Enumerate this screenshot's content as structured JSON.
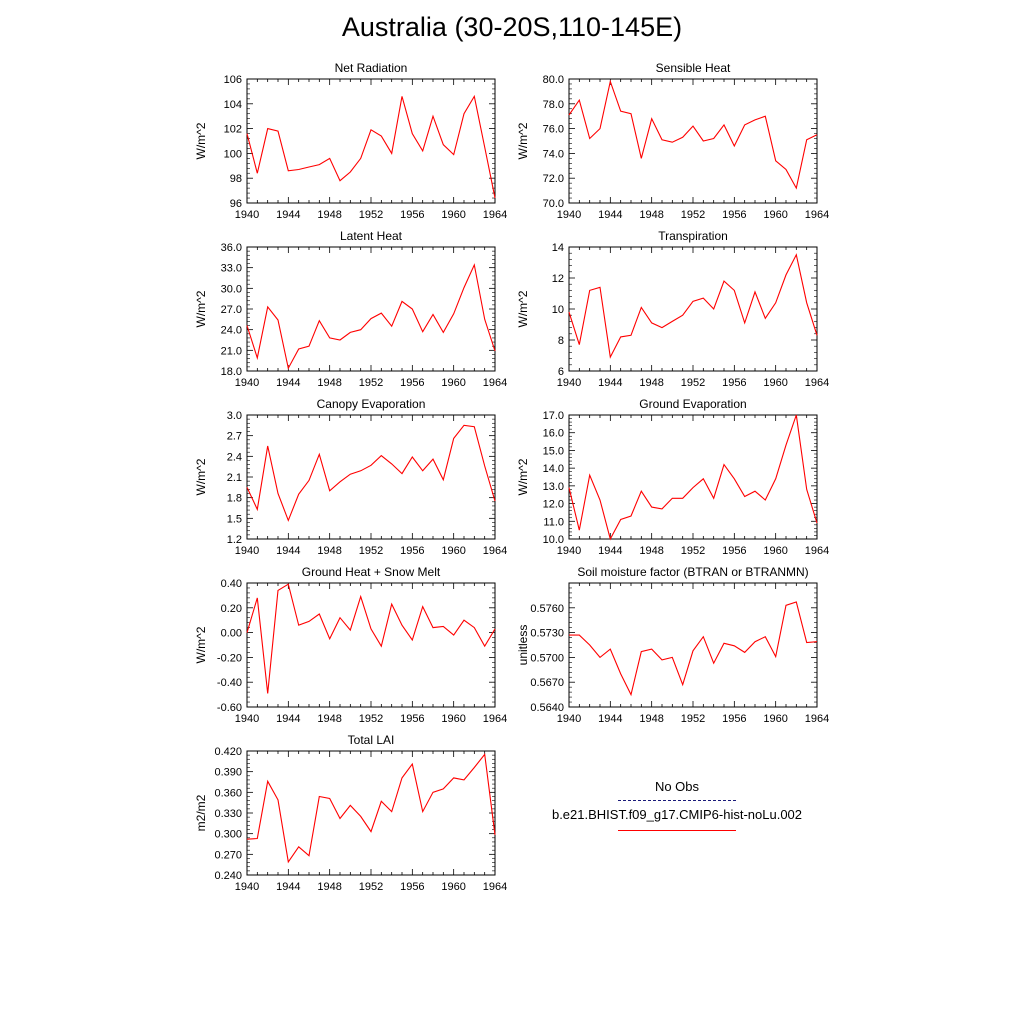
{
  "title": "Australia (30-20S,110-145E)",
  "legend": {
    "obs_label": "No Obs",
    "obs_color": "#1a1a7a",
    "run_label": "b.e21.BHIST.f09_g17.CMIP6-hist-noLu.002",
    "run_color": "#ff0000"
  },
  "chart_data": [
    {
      "type": "line",
      "title": "Net Radiation",
      "ylabel": "W/m^2",
      "ylim": [
        96,
        106
      ],
      "yticks": [
        "96",
        "98",
        "100",
        "102",
        "104",
        "106"
      ],
      "xticks": [
        "1940",
        "1944",
        "1948",
        "1952",
        "1956",
        "1960",
        "1964"
      ],
      "x": [
        1940,
        1941,
        1942,
        1943,
        1944,
        1945,
        1946,
        1947,
        1948,
        1949,
        1950,
        1951,
        1952,
        1953,
        1954,
        1955,
        1956,
        1957,
        1958,
        1959,
        1960,
        1961,
        1962,
        1963,
        1964
      ],
      "series": [
        {
          "color": "#ff0000",
          "values": [
            101.6,
            98.4,
            102.0,
            101.8,
            98.6,
            98.7,
            98.9,
            99.1,
            99.6,
            97.8,
            98.5,
            99.6,
            101.9,
            101.4,
            100.0,
            104.6,
            101.6,
            100.2,
            103.0,
            100.7,
            99.9,
            103.2,
            104.6,
            100.5,
            96.4
          ]
        }
      ]
    },
    {
      "type": "line",
      "title": "Sensible Heat",
      "ylabel": "W/m^2",
      "ylim": [
        70,
        80
      ],
      "yticks": [
        "70.0",
        "72.0",
        "74.0",
        "76.0",
        "78.0",
        "80.0"
      ],
      "xticks": [
        "1940",
        "1944",
        "1948",
        "1952",
        "1956",
        "1960",
        "1964"
      ],
      "x": [
        1940,
        1941,
        1942,
        1943,
        1944,
        1945,
        1946,
        1947,
        1948,
        1949,
        1950,
        1951,
        1952,
        1953,
        1954,
        1955,
        1956,
        1957,
        1958,
        1959,
        1960,
        1961,
        1962,
        1963,
        1964
      ],
      "series": [
        {
          "color": "#ff0000",
          "values": [
            77.1,
            78.3,
            75.2,
            76.0,
            79.8,
            77.4,
            77.2,
            73.6,
            76.8,
            75.1,
            74.9,
            75.3,
            76.2,
            75.0,
            75.2,
            76.3,
            74.6,
            76.3,
            76.7,
            77.0,
            73.4,
            72.7,
            71.2,
            75.1,
            75.5
          ]
        }
      ]
    },
    {
      "type": "line",
      "title": "Latent Heat",
      "ylabel": "W/m^2",
      "ylim": [
        18,
        36
      ],
      "yticks": [
        "18.0",
        "21.0",
        "24.0",
        "27.0",
        "30.0",
        "33.0",
        "36.0"
      ],
      "xticks": [
        "1940",
        "1944",
        "1948",
        "1952",
        "1956",
        "1960",
        "1964"
      ],
      "x": [
        1940,
        1941,
        1942,
        1943,
        1944,
        1945,
        1946,
        1947,
        1948,
        1949,
        1950,
        1951,
        1952,
        1953,
        1954,
        1955,
        1956,
        1957,
        1958,
        1959,
        1960,
        1961,
        1962,
        1963,
        1964
      ],
      "series": [
        {
          "color": "#ff0000",
          "values": [
            24.6,
            19.9,
            27.3,
            25.4,
            18.4,
            21.2,
            21.6,
            25.3,
            22.8,
            22.5,
            23.6,
            24.0,
            25.6,
            26.4,
            24.5,
            28.1,
            27.0,
            23.7,
            26.2,
            23.6,
            26.3,
            30.1,
            33.4,
            25.5,
            20.9
          ]
        }
      ]
    },
    {
      "type": "line",
      "title": "Transpiration",
      "ylabel": "W/m^2",
      "ylim": [
        6,
        14
      ],
      "yticks": [
        "6",
        "8",
        "10",
        "12",
        "14"
      ],
      "xticks": [
        "1940",
        "1944",
        "1948",
        "1952",
        "1956",
        "1960",
        "1964"
      ],
      "x": [
        1940,
        1941,
        1942,
        1943,
        1944,
        1945,
        1946,
        1947,
        1948,
        1949,
        1950,
        1951,
        1952,
        1953,
        1954,
        1955,
        1956,
        1957,
        1958,
        1959,
        1960,
        1961,
        1962,
        1963,
        1964
      ],
      "series": [
        {
          "color": "#ff0000",
          "values": [
            9.8,
            7.7,
            11.2,
            11.4,
            6.9,
            8.2,
            8.3,
            10.1,
            9.1,
            8.8,
            9.2,
            9.6,
            10.5,
            10.7,
            10.0,
            11.8,
            11.2,
            9.1,
            11.1,
            9.4,
            10.4,
            12.2,
            13.5,
            10.4,
            8.3
          ]
        }
      ]
    },
    {
      "type": "line",
      "title": "Canopy Evaporation",
      "ylabel": "W/m^2",
      "ylim": [
        1.2,
        3.0
      ],
      "yticks": [
        "1.2",
        "1.5",
        "1.8",
        "2.1",
        "2.4",
        "2.7",
        "3.0"
      ],
      "xticks": [
        "1940",
        "1944",
        "1948",
        "1952",
        "1956",
        "1960",
        "1964"
      ],
      "x": [
        1940,
        1941,
        1942,
        1943,
        1944,
        1945,
        1946,
        1947,
        1948,
        1949,
        1950,
        1951,
        1952,
        1953,
        1954,
        1955,
        1956,
        1957,
        1958,
        1959,
        1960,
        1961,
        1962,
        1963,
        1964
      ],
      "series": [
        {
          "color": "#ff0000",
          "values": [
            1.95,
            1.63,
            2.55,
            1.86,
            1.47,
            1.85,
            2.05,
            2.43,
            1.9,
            2.03,
            2.14,
            2.19,
            2.27,
            2.41,
            2.29,
            2.15,
            2.39,
            2.19,
            2.36,
            2.06,
            2.66,
            2.85,
            2.83,
            2.26,
            1.75
          ]
        }
      ]
    },
    {
      "type": "line",
      "title": "Ground Evaporation",
      "ylabel": "W/m^2",
      "ylim": [
        10,
        17
      ],
      "yticks": [
        "10.0",
        "11.0",
        "12.0",
        "13.0",
        "14.0",
        "15.0",
        "16.0",
        "17.0"
      ],
      "xticks": [
        "1940",
        "1944",
        "1948",
        "1952",
        "1956",
        "1960",
        "1964"
      ],
      "x": [
        1940,
        1941,
        1942,
        1943,
        1944,
        1945,
        1946,
        1947,
        1948,
        1949,
        1950,
        1951,
        1952,
        1953,
        1954,
        1955,
        1956,
        1957,
        1958,
        1959,
        1960,
        1961,
        1962,
        1963,
        1964
      ],
      "series": [
        {
          "color": "#ff0000",
          "values": [
            12.9,
            10.5,
            13.6,
            12.2,
            10.0,
            11.1,
            11.3,
            12.7,
            11.8,
            11.7,
            12.3,
            12.3,
            12.9,
            13.4,
            12.3,
            14.2,
            13.4,
            12.4,
            12.7,
            12.2,
            13.4,
            15.3,
            17.0,
            12.8,
            10.9
          ]
        }
      ]
    },
    {
      "type": "line",
      "title": "Ground Heat + Snow Melt",
      "ylabel": "W/m^2",
      "ylim": [
        -0.6,
        0.4
      ],
      "yticks": [
        "-0.60",
        "-0.40",
        "-0.20",
        "0.00",
        "0.20",
        "0.40"
      ],
      "xticks": [
        "1940",
        "1944",
        "1948",
        "1952",
        "1956",
        "1960",
        "1964"
      ],
      "x": [
        1940,
        1941,
        1942,
        1943,
        1944,
        1945,
        1946,
        1947,
        1948,
        1949,
        1950,
        1951,
        1952,
        1953,
        1954,
        1955,
        1956,
        1957,
        1958,
        1959,
        1960,
        1961,
        1962,
        1963,
        1964
      ],
      "series": [
        {
          "color": "#ff0000",
          "values": [
            0.0,
            0.28,
            -0.49,
            0.34,
            0.39,
            0.06,
            0.09,
            0.15,
            -0.05,
            0.12,
            0.02,
            0.29,
            0.03,
            -0.11,
            0.23,
            0.06,
            -0.06,
            0.21,
            0.04,
            0.05,
            -0.02,
            0.1,
            0.04,
            -0.11,
            0.03
          ]
        }
      ]
    },
    {
      "type": "line",
      "title": "Soil moisture factor (BTRAN or BTRANMN)",
      "ylabel": "unitless",
      "ylim": [
        0.564,
        0.579
      ],
      "yticks": [
        "0.5640",
        "0.5670",
        "0.5700",
        "0.5730",
        "0.5760"
      ],
      "ytick_values": [
        0.564,
        0.567,
        0.57,
        0.573,
        0.576
      ],
      "xticks": [
        "1940",
        "1944",
        "1948",
        "1952",
        "1956",
        "1960",
        "1964"
      ],
      "x": [
        1940,
        1941,
        1942,
        1943,
        1944,
        1945,
        1946,
        1947,
        1948,
        1949,
        1950,
        1951,
        1952,
        1953,
        1954,
        1955,
        1956,
        1957,
        1958,
        1959,
        1960,
        1961,
        1962,
        1963,
        1964
      ],
      "series": [
        {
          "color": "#ff0000",
          "values": [
            0.5727,
            0.5727,
            0.5715,
            0.57,
            0.571,
            0.568,
            0.5655,
            0.5707,
            0.571,
            0.5697,
            0.57,
            0.5667,
            0.5708,
            0.5725,
            0.5693,
            0.5717,
            0.5714,
            0.5706,
            0.5719,
            0.5725,
            0.5701,
            0.5763,
            0.5767,
            0.5718,
            0.5719
          ]
        }
      ]
    },
    {
      "type": "line",
      "title": "Total LAI",
      "ylabel": "m2/m2",
      "ylim": [
        0.24,
        0.42
      ],
      "yticks": [
        "0.240",
        "0.270",
        "0.300",
        "0.330",
        "0.360",
        "0.390",
        "0.420"
      ],
      "xticks": [
        "1940",
        "1944",
        "1948",
        "1952",
        "1956",
        "1960",
        "1964"
      ],
      "x": [
        1940,
        1941,
        1942,
        1943,
        1944,
        1945,
        1946,
        1947,
        1948,
        1949,
        1950,
        1951,
        1952,
        1953,
        1954,
        1955,
        1956,
        1957,
        1958,
        1959,
        1960,
        1961,
        1962,
        1963,
        1964
      ],
      "series": [
        {
          "color": "#ff0000",
          "values": [
            0.292,
            0.293,
            0.376,
            0.349,
            0.259,
            0.281,
            0.268,
            0.354,
            0.351,
            0.322,
            0.341,
            0.325,
            0.303,
            0.347,
            0.332,
            0.381,
            0.401,
            0.332,
            0.36,
            0.365,
            0.381,
            0.378,
            0.396,
            0.415,
            0.298
          ]
        }
      ]
    }
  ]
}
